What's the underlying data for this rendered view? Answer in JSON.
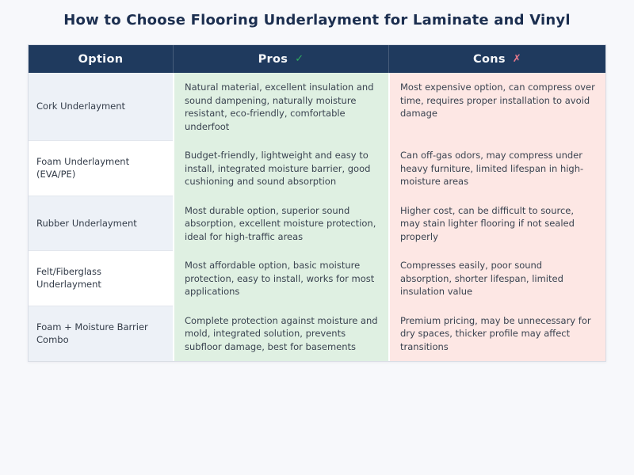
{
  "page_title": "How to Choose Flooring Underlayment for Laminate and Vinyl",
  "table": {
    "headers": {
      "option": "Option",
      "pros": "Pros",
      "pros_icon": "✓",
      "cons": "Cons",
      "cons_icon": "✗"
    },
    "rows": [
      {
        "option": "Cork Underlayment",
        "pros": "Natural material, excellent insulation and sound dampening, naturally moisture resistant, eco-friendly, comfortable underfoot",
        "cons": "Most expensive option, can compress over time, requires proper installation to avoid damage"
      },
      {
        "option": "Foam Underlayment (EVA/PE)",
        "pros": "Budget-friendly, lightweight and easy to install, integrated moisture barrier, good cushioning and sound absorption",
        "cons": "Can off-gas odors, may compress under heavy furniture, limited lifespan in high-moisture areas"
      },
      {
        "option": "Rubber Underlayment",
        "pros": "Most durable option, superior sound absorption, excellent moisture protection, ideal for high-traffic areas",
        "cons": "Higher cost, can be difficult to source, may stain lighter flooring if not sealed properly"
      },
      {
        "option": "Felt/Fiberglass Underlayment",
        "pros": "Most affordable option, basic moisture protection, easy to install, works for most applications",
        "cons": "Compresses easily, poor sound absorption, shorter lifespan, limited insulation value"
      },
      {
        "option": "Foam + Moisture Barrier Combo",
        "pros": "Complete protection against moisture and mold, integrated solution, prevents subfloor damage, best for basements",
        "cons": "Premium pricing, may be unnecessary for dry spaces, thicker profile may affect transitions"
      }
    ]
  },
  "colors": {
    "header_bg": "#1f3a5e",
    "title_text": "#1c2f50",
    "pros_bg": "#dff0e2",
    "cons_bg": "#fde7e4",
    "check_icon": "#2fae60",
    "x_icon": "#e8798c",
    "row_stripe": "#edf1f7"
  }
}
